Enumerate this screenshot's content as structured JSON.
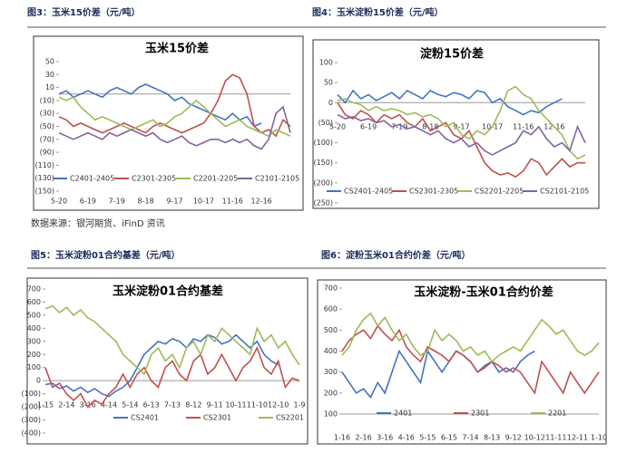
{
  "captions": [
    "图3：玉米15价差（元/吨）",
    "图4：玉米淀粉15价差（元/吨）",
    "图5：玉米淀粉01合约基差（元/吨）",
    "图6：淀粉玉米01合约价差（元/吨）"
  ],
  "source": "数据来源：银河期货、iFinD 资讯",
  "chart_data": [
    {
      "type": "line",
      "title": "玉米15价差",
      "categories": [
        "5-20",
        null,
        null,
        null,
        "6-19",
        null,
        null,
        null,
        "7-19",
        null,
        null,
        null,
        "8-18",
        null,
        null,
        null,
        "9-17",
        null,
        null,
        null,
        "10-17",
        null,
        null,
        null,
        "11-16",
        null,
        null,
        null,
        "12-16",
        null,
        null,
        null,
        null
      ],
      "ylim": [
        -150,
        50
      ],
      "yticks": [
        50,
        30,
        10,
        {
          "value": -10,
          "label": "(10)"
        },
        {
          "value": -30,
          "label": "(30)"
        },
        {
          "value": -50,
          "label": "(50)"
        },
        {
          "value": -70,
          "label": "(70)"
        },
        {
          "value": -90,
          "label": "(90)"
        },
        {
          "value": -110,
          "label": "(110)"
        },
        {
          "value": -130,
          "label": "(130)"
        },
        {
          "value": -150,
          "label": "(150)"
        }
      ],
      "series": [
        {
          "name": "C2401-2405",
          "color": "#4472c4",
          "values": [
            0,
            5,
            -5,
            0,
            5,
            0,
            -5,
            5,
            10,
            5,
            0,
            10,
            15,
            10,
            5,
            0,
            -10,
            -5,
            -15,
            -20,
            -25,
            -30,
            -35,
            -40,
            -30,
            -40,
            -35,
            -50,
            -45,
            null,
            null,
            null,
            null
          ]
        },
        {
          "name": "C2301-2305",
          "color": "#c0504d",
          "values": [
            -35,
            -40,
            -50,
            -45,
            -50,
            -55,
            -60,
            -55,
            -50,
            -45,
            -50,
            -55,
            -60,
            -50,
            -45,
            -50,
            -55,
            -60,
            -55,
            -50,
            -45,
            -30,
            -10,
            20,
            30,
            25,
            0,
            -50,
            -60,
            -55,
            -65,
            -40,
            -50
          ]
        },
        {
          "name": "C2201-2205",
          "color": "#9bbb59",
          "values": [
            -5,
            -10,
            -5,
            -20,
            -30,
            -40,
            -35,
            -40,
            -45,
            -50,
            -55,
            -50,
            -45,
            -40,
            -50,
            -45,
            -35,
            -30,
            -20,
            -10,
            -20,
            -30,
            -40,
            -50,
            -45,
            -40,
            -50,
            -55,
            -60,
            -65,
            -55,
            -60,
            -65
          ]
        },
        {
          "name": "C2101-2105",
          "color": "#8064a2",
          "values": [
            -60,
            -65,
            -70,
            -65,
            -60,
            -65,
            -70,
            -60,
            -65,
            -60,
            -55,
            -60,
            -65,
            -60,
            -70,
            -75,
            -70,
            -65,
            -75,
            -80,
            -75,
            -70,
            -70,
            -75,
            -70,
            -75,
            -70,
            -80,
            -85,
            -70,
            -30,
            -20,
            -60
          ]
        }
      ]
    },
    {
      "type": "line",
      "title": "淀粉15价差",
      "categories": [
        "5-20",
        null,
        null,
        null,
        "6-19",
        null,
        null,
        null,
        "7-19",
        null,
        null,
        null,
        "8-18",
        null,
        null,
        null,
        "9-17",
        null,
        null,
        null,
        "10-17",
        null,
        null,
        null,
        "11-16",
        null,
        null,
        null,
        "12-16",
        null,
        null,
        null,
        null
      ],
      "ylim": [
        -250,
        100
      ],
      "yticks": [
        100,
        50,
        0,
        {
          "value": -50,
          "label": "(50)"
        },
        {
          "value": -100,
          "label": "(100)"
        },
        {
          "value": -150,
          "label": "(150)"
        },
        {
          "value": -200,
          "label": "(200)"
        },
        {
          "value": -250,
          "label": "(250)"
        }
      ],
      "series": [
        {
          "name": "CS2401-2405",
          "color": "#4472c4",
          "values": [
            20,
            0,
            30,
            10,
            20,
            5,
            15,
            25,
            10,
            30,
            20,
            10,
            30,
            20,
            15,
            25,
            20,
            10,
            30,
            25,
            0,
            10,
            -10,
            -20,
            -30,
            -20,
            -25,
            -10,
            0,
            10,
            null,
            null,
            null
          ]
        },
        {
          "name": "CS2301-2305",
          "color": "#c0504d",
          "values": [
            0,
            -30,
            -40,
            -20,
            -30,
            -50,
            -30,
            -40,
            -30,
            -50,
            -60,
            -40,
            -70,
            -60,
            -50,
            -80,
            -90,
            -70,
            -110,
            -150,
            -170,
            -180,
            -175,
            -185,
            -170,
            -140,
            -150,
            -180,
            -160,
            -140,
            -160,
            -150,
            -150
          ]
        },
        {
          "name": "CS2201-2205",
          "color": "#9bbb59",
          "values": [
            5,
            10,
            0,
            -5,
            -20,
            -10,
            -20,
            -15,
            -20,
            -30,
            -25,
            -35,
            -30,
            -40,
            -60,
            -50,
            -80,
            -90,
            -70,
            -80,
            -60,
            -20,
            30,
            40,
            20,
            10,
            -20,
            -40,
            -60,
            -80,
            -120,
            -140,
            -130
          ]
        },
        {
          "name": "CS2101-2105",
          "color": "#8064a2",
          "values": [
            -30,
            -40,
            -35,
            -45,
            -40,
            -50,
            -45,
            -60,
            -55,
            -65,
            -60,
            -70,
            -80,
            -70,
            -90,
            -100,
            -90,
            -110,
            -100,
            -120,
            -130,
            -120,
            -110,
            -100,
            -70,
            -80,
            -60,
            -90,
            -110,
            -100,
            -120,
            -60,
            -100
          ]
        }
      ]
    },
    {
      "type": "line",
      "title": "玉米淀粉01合约基差",
      "categories": [
        "1-15",
        null,
        null,
        "2-14",
        null,
        null,
        "3-16",
        null,
        null,
        "4-14",
        null,
        null,
        "5-14",
        null,
        null,
        "6-13",
        null,
        null,
        "7-13",
        null,
        null,
        "8-12",
        null,
        null,
        "9-11",
        null,
        null,
        "10-11",
        null,
        null,
        "11-10",
        null,
        null,
        "12-10",
        null,
        null,
        "1-9"
      ],
      "ylim": [
        -400,
        700
      ],
      "yticks": [
        700,
        600,
        500,
        400,
        300,
        200,
        100,
        0,
        {
          "value": -100,
          "label": "(100)"
        },
        {
          "value": -200,
          "label": "(200)"
        },
        {
          "value": -300,
          "label": "(300)"
        },
        {
          "value": -400,
          "label": "(400)"
        }
      ],
      "series": [
        {
          "name": "CS2401",
          "color": "#4472c4",
          "values": [
            -30,
            -20,
            -60,
            -40,
            -80,
            -50,
            -90,
            -60,
            -100,
            -120,
            -80,
            -50,
            0,
            100,
            200,
            250,
            300,
            280,
            320,
            300,
            250,
            320,
            300,
            350,
            330,
            280,
            300,
            350,
            300,
            250,
            300,
            200,
            150,
            120,
            null,
            null,
            null
          ]
        },
        {
          "name": "CS2301",
          "color": "#c0504d",
          "values": [
            100,
            -50,
            -20,
            -100,
            -150,
            -100,
            -200,
            -150,
            -180,
            -100,
            -50,
            50,
            -50,
            50,
            100,
            0,
            -50,
            100,
            150,
            50,
            0,
            150,
            200,
            50,
            100,
            200,
            100,
            0,
            100,
            150,
            250,
            100,
            50,
            150,
            -50,
            20,
            0
          ]
        },
        {
          "name": "CS2201",
          "color": "#9bbb59",
          "values": [
            550,
            570,
            520,
            560,
            500,
            540,
            480,
            450,
            400,
            350,
            300,
            200,
            150,
            100,
            50,
            200,
            250,
            150,
            200,
            100,
            250,
            300,
            200,
            350,
            300,
            400,
            350,
            300,
            250,
            200,
            400,
            300,
            350,
            250,
            300,
            200,
            120
          ]
        }
      ]
    },
    {
      "type": "line",
      "title": "玉米淀粉-玉米01合约价差",
      "categories": [
        "1-16",
        null,
        null,
        "2-16",
        null,
        null,
        "3-16",
        null,
        null,
        "4-16",
        null,
        null,
        "5-15",
        null,
        null,
        "6-15",
        null,
        null,
        "7-14",
        null,
        null,
        "8-13",
        null,
        null,
        "9-12",
        null,
        null,
        "10-12",
        null,
        null,
        "11-11",
        null,
        null,
        "12-11",
        null,
        null,
        "1-10"
      ],
      "ylim": [
        100,
        700
      ],
      "yticks": [
        700,
        600,
        500,
        400,
        300,
        200,
        100
      ],
      "series": [
        {
          "name": "2401",
          "color": "#4472c4",
          "values": [
            300,
            250,
            200,
            220,
            180,
            250,
            200,
            300,
            400,
            350,
            300,
            250,
            400,
            350,
            300,
            350,
            400,
            380,
            350,
            300,
            330,
            350,
            300,
            320,
            300,
            350,
            380,
            400,
            null,
            null,
            null,
            null,
            null,
            null,
            null,
            null,
            null
          ]
        },
        {
          "name": "2301",
          "color": "#c0504d",
          "values": [
            400,
            450,
            480,
            500,
            460,
            520,
            480,
            450,
            500,
            420,
            380,
            350,
            420,
            400,
            380,
            350,
            400,
            380,
            350,
            300,
            320,
            350,
            330,
            300,
            320,
            300,
            250,
            200,
            350,
            300,
            250,
            200,
            300,
            250,
            200,
            250,
            300
          ]
        },
        {
          "name": "2201",
          "color": "#9bbb59",
          "values": [
            380,
            420,
            500,
            550,
            580,
            520,
            560,
            500,
            450,
            480,
            420,
            380,
            400,
            500,
            450,
            480,
            450,
            400,
            420,
            380,
            400,
            350,
            380,
            400,
            420,
            400,
            450,
            500,
            550,
            520,
            480,
            500,
            450,
            400,
            380,
            400,
            440
          ]
        }
      ]
    }
  ]
}
